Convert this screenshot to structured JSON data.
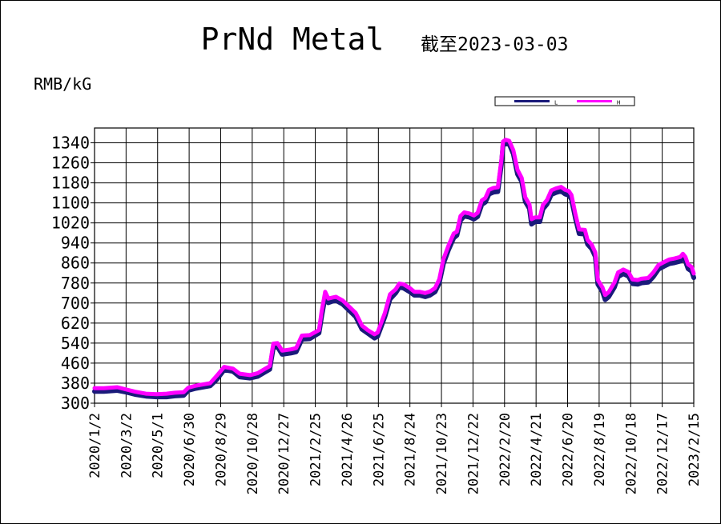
{
  "chart_data": {
    "type": "line",
    "title": "PrNd Metal",
    "subtitle": "截至2023-03-03",
    "ylabel": "RMB/kG",
    "xlabel": "",
    "ylim": [
      300,
      1380
    ],
    "yticks": [
      300,
      380,
      460,
      540,
      620,
      700,
      780,
      860,
      940,
      1020,
      1100,
      1180,
      1260,
      1340
    ],
    "xlim": [
      "2020-01-02",
      "2023-03-03"
    ],
    "xticks": [
      "2020/1/2",
      "2020/3/2",
      "2020/5/1",
      "2020/6/30",
      "2020/8/29",
      "2020/10/28",
      "2020/12/27",
      "2021/2/25",
      "2021/4/26",
      "2021/6/25",
      "2021/8/24",
      "2021/10/23",
      "2021/12/22",
      "2022/2/20",
      "2022/4/21",
      "2022/6/20",
      "2022/8/19",
      "2022/10/18",
      "2022/12/17",
      "2023/2/15"
    ],
    "grid": true,
    "legend": "top-right",
    "colors": {
      "L": "#1a1a7a",
      "H": "#ff00ff",
      "grid": "#000000"
    },
    "series": [
      {
        "name": "L",
        "points": [
          [
            "2020-01-02",
            352
          ],
          [
            "2020-01-20",
            352
          ],
          [
            "2020-02-15",
            356
          ],
          [
            "2020-03-01",
            350
          ],
          [
            "2020-03-20",
            340
          ],
          [
            "2020-04-10",
            333
          ],
          [
            "2020-05-01",
            330
          ],
          [
            "2020-05-20",
            330
          ],
          [
            "2020-06-05",
            334
          ],
          [
            "2020-06-22",
            336
          ],
          [
            "2020-07-01",
            356
          ],
          [
            "2020-07-15",
            364
          ],
          [
            "2020-08-01",
            370
          ],
          [
            "2020-08-12",
            374
          ],
          [
            "2020-08-25",
            400
          ],
          [
            "2020-09-08",
            438
          ],
          [
            "2020-09-25",
            432
          ],
          [
            "2020-10-08",
            410
          ],
          [
            "2020-10-28",
            405
          ],
          [
            "2020-11-12",
            412
          ],
          [
            "2020-11-25",
            428
          ],
          [
            "2020-12-05",
            440
          ],
          [
            "2020-12-12",
            528
          ],
          [
            "2020-12-20",
            530
          ],
          [
            "2020-12-29",
            500
          ],
          [
            "2021-01-15",
            505
          ],
          [
            "2021-01-25",
            510
          ],
          [
            "2021-02-05",
            560
          ],
          [
            "2021-02-20",
            562
          ],
          [
            "2021-03-10",
            585
          ],
          [
            "2021-03-15",
            650
          ],
          [
            "2021-03-22",
            730
          ],
          [
            "2021-03-28",
            706
          ],
          [
            "2021-04-05",
            712
          ],
          [
            "2021-04-12",
            715
          ],
          [
            "2021-04-25",
            700
          ],
          [
            "2021-05-05",
            680
          ],
          [
            "2021-05-20",
            650
          ],
          [
            "2021-06-01",
            600
          ],
          [
            "2021-06-12",
            584
          ],
          [
            "2021-06-25",
            565
          ],
          [
            "2021-07-01",
            572
          ],
          [
            "2021-07-08",
            610
          ],
          [
            "2021-07-15",
            650
          ],
          [
            "2021-07-25",
            720
          ],
          [
            "2021-08-05",
            745
          ],
          [
            "2021-08-12",
            768
          ],
          [
            "2021-08-20",
            765
          ],
          [
            "2021-09-01",
            750
          ],
          [
            "2021-09-10",
            736
          ],
          [
            "2021-09-20",
            736
          ],
          [
            "2021-10-01",
            730
          ],
          [
            "2021-10-10",
            736
          ],
          [
            "2021-10-20",
            750
          ],
          [
            "2021-10-28",
            785
          ],
          [
            "2021-11-05",
            862
          ],
          [
            "2021-11-15",
            918
          ],
          [
            "2021-11-25",
            965
          ],
          [
            "2021-12-01",
            975
          ],
          [
            "2021-12-08",
            1035
          ],
          [
            "2021-12-15",
            1052
          ],
          [
            "2021-12-25",
            1048
          ],
          [
            "2022-01-03",
            1040
          ],
          [
            "2022-01-10",
            1050
          ],
          [
            "2022-01-18",
            1098
          ],
          [
            "2022-01-25",
            1108
          ],
          [
            "2022-02-01",
            1140
          ],
          [
            "2022-02-10",
            1148
          ],
          [
            "2022-02-18",
            1150
          ],
          [
            "2022-02-25",
            1260
          ],
          [
            "2022-02-28",
            1335
          ],
          [
            "2022-03-05",
            1342
          ],
          [
            "2022-03-12",
            1340
          ],
          [
            "2022-03-20",
            1300
          ],
          [
            "2022-03-28",
            1220
          ],
          [
            "2022-04-05",
            1190
          ],
          [
            "2022-04-12",
            1110
          ],
          [
            "2022-04-20",
            1082
          ],
          [
            "2022-04-24",
            1020
          ],
          [
            "2022-05-01",
            1030
          ],
          [
            "2022-05-10",
            1030
          ],
          [
            "2022-05-16",
            1080
          ],
          [
            "2022-05-24",
            1100
          ],
          [
            "2022-06-01",
            1138
          ],
          [
            "2022-06-10",
            1146
          ],
          [
            "2022-06-20",
            1152
          ],
          [
            "2022-06-28",
            1140
          ],
          [
            "2022-07-05",
            1135
          ],
          [
            "2022-07-10",
            1120
          ],
          [
            "2022-07-18",
            1040
          ],
          [
            "2022-07-25",
            982
          ],
          [
            "2022-08-05",
            980
          ],
          [
            "2022-08-10",
            940
          ],
          [
            "2022-08-18",
            922
          ],
          [
            "2022-08-25",
            890
          ],
          [
            "2022-08-30",
            780
          ],
          [
            "2022-09-08",
            750
          ],
          [
            "2022-09-13",
            718
          ],
          [
            "2022-09-20",
            730
          ],
          [
            "2022-10-01",
            768
          ],
          [
            "2022-10-08",
            810
          ],
          [
            "2022-10-18",
            822
          ],
          [
            "2022-10-28",
            812
          ],
          [
            "2022-11-05",
            782
          ],
          [
            "2022-11-15",
            780
          ],
          [
            "2022-11-22",
            785
          ],
          [
            "2022-12-05",
            788
          ],
          [
            "2022-12-15",
            810
          ],
          [
            "2022-12-25",
            840
          ],
          [
            "2023-01-05",
            852
          ],
          [
            "2023-01-15",
            862
          ],
          [
            "2023-01-25",
            866
          ],
          [
            "2023-02-05",
            872
          ],
          [
            "2023-02-10",
            885
          ],
          [
            "2023-02-15",
            872
          ],
          [
            "2023-02-20",
            842
          ],
          [
            "2023-02-27",
            832
          ],
          [
            "2023-03-03",
            806
          ]
        ]
      },
      {
        "name": "H",
        "points": [
          [
            "2020-01-02",
            360
          ],
          [
            "2020-01-20",
            360
          ],
          [
            "2020-02-15",
            364
          ],
          [
            "2020-03-01",
            356
          ],
          [
            "2020-03-20",
            346
          ],
          [
            "2020-04-10",
            338
          ],
          [
            "2020-05-01",
            336
          ],
          [
            "2020-05-20",
            338
          ],
          [
            "2020-06-05",
            342
          ],
          [
            "2020-06-22",
            344
          ],
          [
            "2020-07-01",
            362
          ],
          [
            "2020-07-15",
            370
          ],
          [
            "2020-08-01",
            376
          ],
          [
            "2020-08-12",
            380
          ],
          [
            "2020-08-25",
            410
          ],
          [
            "2020-09-08",
            445
          ],
          [
            "2020-09-25",
            438
          ],
          [
            "2020-10-08",
            418
          ],
          [
            "2020-10-28",
            412
          ],
          [
            "2020-11-12",
            420
          ],
          [
            "2020-11-25",
            436
          ],
          [
            "2020-12-05",
            448
          ],
          [
            "2020-12-12",
            538
          ],
          [
            "2020-12-20",
            540
          ],
          [
            "2020-12-29",
            510
          ],
          [
            "2021-01-15",
            515
          ],
          [
            "2021-01-25",
            520
          ],
          [
            "2021-02-05",
            570
          ],
          [
            "2021-02-20",
            572
          ],
          [
            "2021-03-10",
            592
          ],
          [
            "2021-03-15",
            665
          ],
          [
            "2021-03-22",
            745
          ],
          [
            "2021-03-28",
            718
          ],
          [
            "2021-04-05",
            722
          ],
          [
            "2021-04-12",
            725
          ],
          [
            "2021-04-25",
            710
          ],
          [
            "2021-05-05",
            690
          ],
          [
            "2021-05-20",
            660
          ],
          [
            "2021-06-01",
            610
          ],
          [
            "2021-06-12",
            592
          ],
          [
            "2021-06-25",
            575
          ],
          [
            "2021-07-01",
            582
          ],
          [
            "2021-07-08",
            620
          ],
          [
            "2021-07-15",
            660
          ],
          [
            "2021-07-25",
            735
          ],
          [
            "2021-08-05",
            755
          ],
          [
            "2021-08-12",
            778
          ],
          [
            "2021-08-20",
            775
          ],
          [
            "2021-09-01",
            760
          ],
          [
            "2021-09-10",
            745
          ],
          [
            "2021-09-20",
            745
          ],
          [
            "2021-10-01",
            740
          ],
          [
            "2021-10-10",
            746
          ],
          [
            "2021-10-20",
            760
          ],
          [
            "2021-10-28",
            795
          ],
          [
            "2021-11-05",
            875
          ],
          [
            "2021-11-15",
            930
          ],
          [
            "2021-11-25",
            978
          ],
          [
            "2021-12-01",
            985
          ],
          [
            "2021-12-08",
            1048
          ],
          [
            "2021-12-15",
            1062
          ],
          [
            "2021-12-25",
            1058
          ],
          [
            "2022-01-03",
            1050
          ],
          [
            "2022-01-10",
            1060
          ],
          [
            "2022-01-18",
            1110
          ],
          [
            "2022-01-25",
            1120
          ],
          [
            "2022-02-01",
            1152
          ],
          [
            "2022-02-10",
            1160
          ],
          [
            "2022-02-18",
            1162
          ],
          [
            "2022-02-25",
            1272
          ],
          [
            "2022-02-28",
            1345
          ],
          [
            "2022-03-05",
            1352
          ],
          [
            "2022-03-12",
            1348
          ],
          [
            "2022-03-20",
            1310
          ],
          [
            "2022-03-28",
            1232
          ],
          [
            "2022-04-05",
            1200
          ],
          [
            "2022-04-12",
            1122
          ],
          [
            "2022-04-20",
            1094
          ],
          [
            "2022-04-24",
            1035
          ],
          [
            "2022-05-01",
            1042
          ],
          [
            "2022-05-10",
            1042
          ],
          [
            "2022-05-16",
            1092
          ],
          [
            "2022-05-24",
            1112
          ],
          [
            "2022-06-01",
            1150
          ],
          [
            "2022-06-10",
            1158
          ],
          [
            "2022-06-20",
            1164
          ],
          [
            "2022-06-28",
            1152
          ],
          [
            "2022-07-05",
            1147
          ],
          [
            "2022-07-10",
            1132
          ],
          [
            "2022-07-18",
            1052
          ],
          [
            "2022-07-25",
            994
          ],
          [
            "2022-08-05",
            992
          ],
          [
            "2022-08-10",
            952
          ],
          [
            "2022-08-18",
            934
          ],
          [
            "2022-08-25",
            902
          ],
          [
            "2022-08-30",
            792
          ],
          [
            "2022-09-08",
            762
          ],
          [
            "2022-09-13",
            732
          ],
          [
            "2022-09-20",
            744
          ],
          [
            "2022-10-01",
            782
          ],
          [
            "2022-10-08",
            822
          ],
          [
            "2022-10-18",
            834
          ],
          [
            "2022-10-28",
            824
          ],
          [
            "2022-11-05",
            794
          ],
          [
            "2022-11-15",
            792
          ],
          [
            "2022-11-22",
            797
          ],
          [
            "2022-12-05",
            800
          ],
          [
            "2022-12-15",
            822
          ],
          [
            "2022-12-25",
            852
          ],
          [
            "2023-01-05",
            864
          ],
          [
            "2023-01-15",
            874
          ],
          [
            "2023-01-25",
            878
          ],
          [
            "2023-02-05",
            884
          ],
          [
            "2023-02-10",
            897
          ],
          [
            "2023-02-15",
            884
          ],
          [
            "2023-02-20",
            854
          ],
          [
            "2023-02-27",
            844
          ],
          [
            "2023-03-03",
            818
          ]
        ]
      }
    ]
  }
}
